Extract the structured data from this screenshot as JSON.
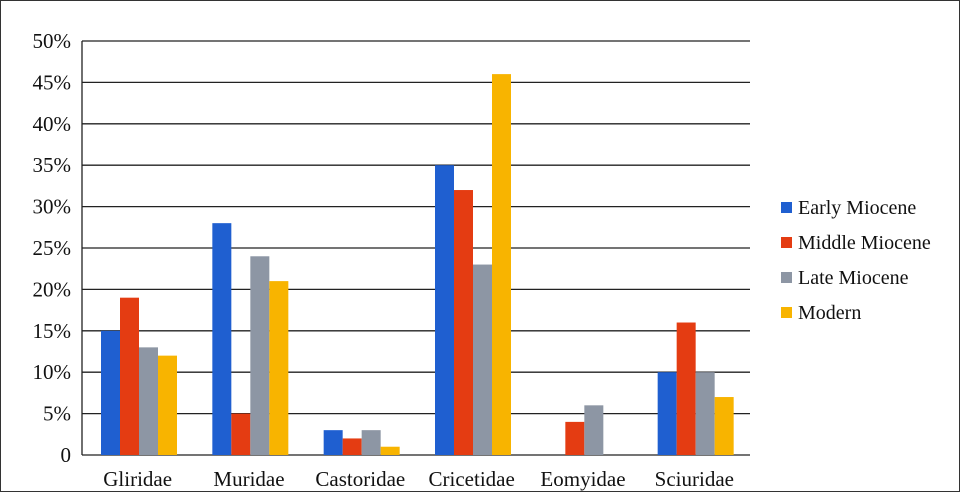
{
  "chart_data": {
    "type": "bar",
    "categories": [
      "Gliridae",
      "Muridae",
      "Castoridae",
      "Cricetidae",
      "Eomyidae",
      "Sciuridae"
    ],
    "series": [
      {
        "name": "Early Miocene",
        "values": [
          15,
          28,
          3,
          35,
          null,
          10
        ],
        "color": "#1f5fd0"
      },
      {
        "name": "Middle Miocene",
        "values": [
          19,
          5,
          2,
          32,
          4,
          16
        ],
        "color": "#e43c12"
      },
      {
        "name": "Late Miocene",
        "values": [
          13,
          24,
          3,
          23,
          6,
          10
        ],
        "color": "#8d96a4"
      },
      {
        "name": "Modern",
        "values": [
          12,
          21,
          1,
          46,
          null,
          7
        ],
        "color": "#f8b400"
      }
    ],
    "yticks": [
      "0",
      "5%",
      "10%",
      "15%",
      "20%",
      "25%",
      "30%",
      "35%",
      "40%",
      "45%",
      "50%"
    ],
    "ylim": [
      0,
      50
    ],
    "grid": true,
    "legend_position": "right",
    "title": "",
    "xlabel": "",
    "ylabel": ""
  }
}
